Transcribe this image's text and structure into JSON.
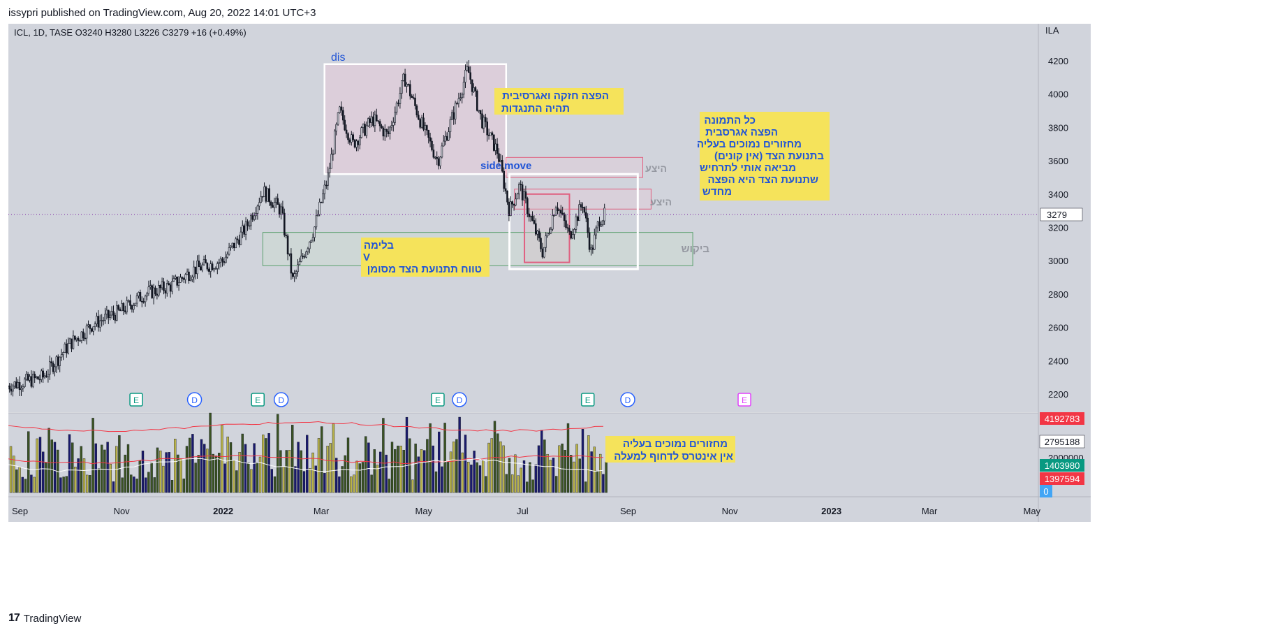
{
  "header": {
    "publish_line": "issypri published on TradingView.com, Aug 20, 2022 14:01 UTC+3"
  },
  "legend": {
    "symbol_line": "ICL, 1D, TASE  O3240  H3280  L3226  C3279  +16 (+0.49%)"
  },
  "price_axis": {
    "currency": "ILA",
    "ticks": [
      "4200",
      "4000",
      "3800",
      "3600",
      "3400",
      "3200",
      "3000",
      "2800",
      "2600",
      "2400",
      "2200"
    ],
    "tick_values": [
      4200,
      4000,
      3800,
      3600,
      3400,
      3200,
      3000,
      2800,
      2600,
      2400,
      2200
    ],
    "last_price": "3279"
  },
  "volume_axis": {
    "label_2000000": "2000000",
    "badges": [
      {
        "text": "4192783",
        "color": "#f23645"
      },
      {
        "text": "2795188",
        "color": "#ffffff"
      },
      {
        "text": "1403980",
        "color": "#089981"
      },
      {
        "text": "1397594",
        "color": "#f23645"
      },
      {
        "text": "0",
        "color": "#42a5f5"
      }
    ]
  },
  "time_axis": {
    "labels": [
      "Sep",
      "Nov",
      "2022",
      "Mar",
      "May",
      "Jul",
      "Sep",
      "Nov",
      "2023",
      "Mar",
      "May"
    ]
  },
  "events": [
    {
      "type": "E"
    },
    {
      "type": "D"
    },
    {
      "type": "E"
    },
    {
      "type": "D"
    },
    {
      "type": "E"
    },
    {
      "type": "D"
    },
    {
      "type": "E"
    },
    {
      "type": "D"
    },
    {
      "type": "E"
    }
  ],
  "annotations": {
    "dis_label": "dis",
    "side_move_label": "side move",
    "note_top": [
      "הפצה חזקה ואגרסיבית",
      "תהיה התנגדות"
    ],
    "note_right": [
      "כל התמונה",
      "הפצה אגרסבית",
      "מחזורים נמוכים בעליה",
      "(בתנועת הצד (אין קונים",
      "מביאה אותי לתרחיש",
      "שתנועת הצד היא הפצה",
      "מחדש"
    ],
    "note_mid": [
      "בלימה",
      "V",
      "טווח תתנועת הצד מסומן"
    ],
    "note_volume": [
      "מחזורים נמוכים בעליה",
      "אין אינטרס לדחוף למעלה"
    ],
    "supply_label_1": "היצע",
    "supply_label_2": "היצע",
    "demand_label": "ביקוש"
  },
  "colors": {
    "pane_bg": "#d1d4dc",
    "up_bar": "#3b5323",
    "down_bar": "#1a1a6e",
    "highlight_bar": "#b8b24a",
    "note_bg": "#f5e35b",
    "note_text": "#2155d6"
  },
  "chart_data": {
    "type": "candlestick",
    "title": "ICL, 1D, TASE",
    "ylabel": "ILA",
    "ylim": [
      2150,
      4300
    ],
    "x_range": [
      "2021-09",
      "2023-05"
    ],
    "last_close": 3279,
    "ohlc_last": {
      "open": 3240,
      "high": 3280,
      "low": 3226,
      "close": 3279,
      "change": "+16 (+0.49%)"
    },
    "price_path": [
      {
        "date": "2021-08-25",
        "close": 2250
      },
      {
        "date": "2021-09-15",
        "close": 2300
      },
      {
        "date": "2021-10-01",
        "close": 2500
      },
      {
        "date": "2021-10-15",
        "close": 2620
      },
      {
        "date": "2021-11-01",
        "close": 2700
      },
      {
        "date": "2021-11-15",
        "close": 2800
      },
      {
        "date": "2021-12-01",
        "close": 2850
      },
      {
        "date": "2021-12-15",
        "close": 2950
      },
      {
        "date": "2022-01-01",
        "close": 3000
      },
      {
        "date": "2022-01-15",
        "close": 3200
      },
      {
        "date": "2022-01-25",
        "close": 3420
      },
      {
        "date": "2022-02-05",
        "close": 3300
      },
      {
        "date": "2022-02-12",
        "close": 2880
      },
      {
        "date": "2022-02-25",
        "close": 3200
      },
      {
        "date": "2022-03-05",
        "close": 3500
      },
      {
        "date": "2022-03-12",
        "close": 3900
      },
      {
        "date": "2022-03-20",
        "close": 3700
      },
      {
        "date": "2022-04-01",
        "close": 3850
      },
      {
        "date": "2022-04-10",
        "close": 3750
      },
      {
        "date": "2022-04-20",
        "close": 4100
      },
      {
        "date": "2022-05-01",
        "close": 3800
      },
      {
        "date": "2022-05-10",
        "close": 3600
      },
      {
        "date": "2022-05-20",
        "close": 3900
      },
      {
        "date": "2022-05-28",
        "close": 4150
      },
      {
        "date": "2022-06-05",
        "close": 3850
      },
      {
        "date": "2022-06-15",
        "close": 3650
      },
      {
        "date": "2022-06-22",
        "close": 3300
      },
      {
        "date": "2022-06-28",
        "close": 3450
      },
      {
        "date": "2022-07-05",
        "close": 3250
      },
      {
        "date": "2022-07-12",
        "close": 3050
      },
      {
        "date": "2022-07-20",
        "close": 3350
      },
      {
        "date": "2022-07-28",
        "close": 3150
      },
      {
        "date": "2022-08-05",
        "close": 3350
      },
      {
        "date": "2022-08-10",
        "close": 3050
      },
      {
        "date": "2022-08-15",
        "close": 3250
      },
      {
        "date": "2022-08-19",
        "close": 3279
      }
    ],
    "zones": [
      {
        "name": "distribution",
        "label": "dis",
        "from": "2022-03-03",
        "to": "2022-06-20",
        "low": 3520,
        "high": 4180
      },
      {
        "name": "supply_1",
        "label": "היצע",
        "from": "2022-06-20",
        "to": "2022-09-10",
        "low": 3500,
        "high": 3620
      },
      {
        "name": "supply_2",
        "label": "היצע",
        "from": "2022-06-25",
        "to": "2022-09-15",
        "low": 3310,
        "high": 3430
      },
      {
        "name": "demand",
        "label": "ביקוש",
        "from": "2022-01-25",
        "to": "2022-10-10",
        "low": 2970,
        "high": 3170
      },
      {
        "name": "side_move",
        "label": "side move",
        "from": "2022-06-22",
        "to": "2022-09-07",
        "low": 2950,
        "high": 3520
      }
    ]
  }
}
